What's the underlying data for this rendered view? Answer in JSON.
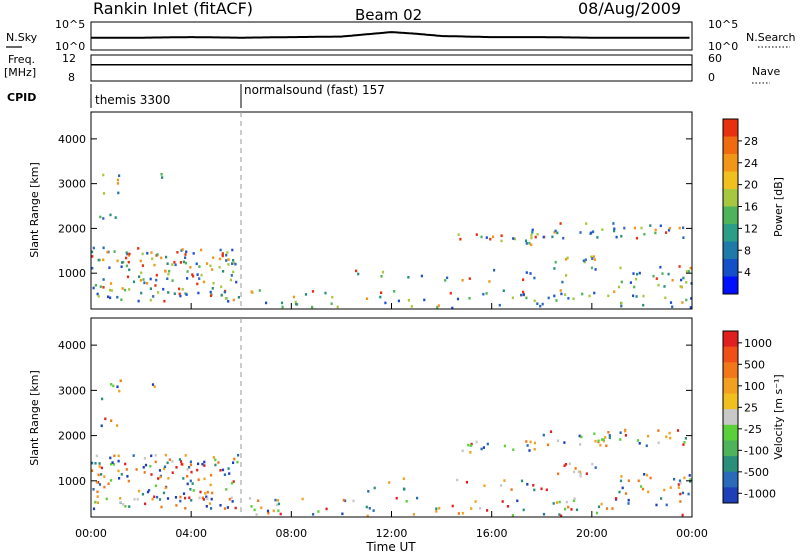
{
  "header": {
    "title": "Rankin Inlet (fitACF)",
    "beam": "Beam 02",
    "date": "08/Aug/2009"
  },
  "chart_data": [
    {
      "type": "line",
      "name": "nsky-nsearch-strip",
      "left_label": "N.Sky",
      "right_label": "N.Search",
      "left_ticks": [
        "10^5",
        "10^0"
      ],
      "right_ticks": [
        "10^5",
        "10^0"
      ],
      "x": [
        0,
        2,
        4,
        6,
        8,
        10,
        11,
        12,
        13,
        14,
        16,
        18,
        20,
        22,
        24
      ],
      "series": [
        {
          "values": [
            2.2,
            2.2,
            2.3,
            2.2,
            2.3,
            2.4,
            2.8,
            3.2,
            2.9,
            2.5,
            2.3,
            2.3,
            2.2,
            2.2,
            2.2
          ]
        }
      ],
      "ylim": [
        0,
        5
      ]
    },
    {
      "type": "line",
      "name": "freq-nave-strip",
      "left_label": "Freq.",
      "left_unit": "[MHz]",
      "right_label": "Nave",
      "left_ticks": [
        "12",
        "8"
      ],
      "right_ticks": [
        "60",
        "0"
      ],
      "x": [
        0,
        6,
        12,
        18,
        24
      ],
      "series": [
        {
          "values": [
            10.5,
            10.5,
            10.5,
            10.5,
            10.5
          ]
        }
      ],
      "ylim": [
        8,
        12
      ]
    },
    {
      "type": "table",
      "name": "cpid-strip",
      "label": "CPID",
      "segments": [
        {
          "name": "themis 3300",
          "start": 0,
          "end": 6
        },
        {
          "name": "normalsound (fast) 157",
          "start": 6,
          "end": 24
        }
      ]
    },
    {
      "type": "heatmap",
      "name": "power-panel",
      "ylabel": "Slant Range [km]",
      "ylim": [
        200,
        4600
      ],
      "yticks": [
        1000,
        2000,
        3000,
        4000
      ],
      "xlim": [
        0,
        24
      ],
      "colorbar": {
        "label": "Power [dB]",
        "ticks": [
          "4",
          "8",
          "12",
          "16",
          "20",
          "24",
          "28"
        ],
        "colors": [
          "#0010ff",
          "#1550c8",
          "#1f7aa8",
          "#2a9e86",
          "#4fb35c",
          "#a6c840",
          "#f0c020",
          "#f29618",
          "#f06a10",
          "#e83010"
        ]
      }
    },
    {
      "type": "heatmap",
      "name": "velocity-panel",
      "ylabel": "Slant Range [km]",
      "ylim": [
        200,
        4600
      ],
      "yticks": [
        1000,
        2000,
        3000,
        4000
      ],
      "xlim": [
        0,
        24
      ],
      "xlabel": "Time UT",
      "xticks": [
        "00:00",
        "04:00",
        "08:00",
        "12:00",
        "16:00",
        "20:00",
        "00:00"
      ],
      "colorbar": {
        "label": "Velocity [m s⁻¹]",
        "ticks": [
          "1000",
          "500",
          "100",
          "25",
          "-25",
          "-100",
          "-500",
          "-1000"
        ],
        "colors": [
          "#1f3fb8",
          "#2a6ab8",
          "#2a8f7a",
          "#4fb35c",
          "#5cd03a",
          "#c8c8c8",
          "#f0c020",
          "#f2a020",
          "#f07818",
          "#f05018",
          "#e02020"
        ]
      }
    }
  ]
}
